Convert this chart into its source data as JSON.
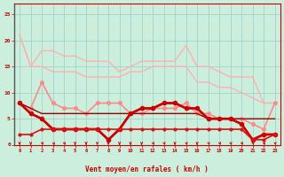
{
  "series": [
    {
      "name": "light_pink_upper",
      "color": "#ffb0b0",
      "linewidth": 1.0,
      "marker": null,
      "markersize": 0,
      "zorder": 2,
      "values": [
        21,
        15,
        18,
        18,
        17,
        17,
        16,
        16,
        16,
        14,
        15,
        16,
        16,
        16,
        16,
        19,
        15,
        15,
        14,
        13,
        13,
        13,
        8,
        8
      ]
    },
    {
      "name": "light_pink_lower",
      "color": "#ffb0b0",
      "linewidth": 1.0,
      "marker": null,
      "markersize": 0,
      "zorder": 2,
      "values": [
        21,
        15,
        15,
        14,
        14,
        14,
        13,
        13,
        13,
        13,
        14,
        14,
        15,
        15,
        15,
        15,
        12,
        12,
        11,
        11,
        10,
        9,
        8,
        8
      ]
    },
    {
      "name": "medium_pink_markers",
      "color": "#ff8888",
      "linewidth": 1.2,
      "marker": "o",
      "markersize": 2.5,
      "zorder": 3,
      "values": [
        8,
        7,
        12,
        8,
        7,
        7,
        6,
        8,
        8,
        8,
        6,
        6,
        7,
        7,
        7,
        8,
        6,
        6,
        5,
        5,
        5,
        4,
        3,
        8
      ]
    },
    {
      "name": "dark_red_line",
      "color": "#990000",
      "linewidth": 1.0,
      "marker": null,
      "markersize": 0,
      "zorder": 3,
      "values": [
        8,
        7,
        6,
        6,
        6,
        6,
        6,
        6,
        6,
        6,
        6,
        6,
        6,
        6,
        6,
        6,
        6,
        5,
        5,
        5,
        5,
        5,
        5,
        5
      ]
    },
    {
      "name": "red_bold_markers",
      "color": "#cc0000",
      "linewidth": 2.0,
      "marker": "o",
      "markersize": 3,
      "zorder": 4,
      "values": [
        8,
        6,
        5,
        3,
        3,
        3,
        3,
        3,
        1,
        3,
        6,
        7,
        7,
        8,
        8,
        7,
        7,
        5,
        5,
        5,
        4,
        1,
        2,
        2
      ]
    },
    {
      "name": "red_flat_markers",
      "color": "#dd1111",
      "linewidth": 1.2,
      "marker": "o",
      "markersize": 2,
      "zorder": 4,
      "values": [
        2,
        2,
        3,
        3,
        3,
        3,
        3,
        3,
        3,
        3,
        3,
        3,
        3,
        3,
        3,
        3,
        3,
        3,
        3,
        3,
        3,
        1,
        1,
        2
      ]
    }
  ],
  "arrow_angles": [
    90,
    90,
    60,
    45,
    60,
    90,
    90,
    90,
    90,
    90,
    90,
    90,
    60,
    60,
    90,
    60,
    90,
    60,
    60,
    60,
    60,
    60,
    60,
    60
  ],
  "xlabel": "Vent moyen/en rafales ( km/h )",
  "ylim": [
    0,
    27
  ],
  "yticks": [
    0,
    5,
    10,
    15,
    20,
    25
  ],
  "xlim": [
    -0.5,
    23.5
  ],
  "bg_color": "#cceedd",
  "grid_color": "#99cccc",
  "axis_color": "#cc0000",
  "text_color": "#cc0000",
  "arrow_color": "#cc0000"
}
